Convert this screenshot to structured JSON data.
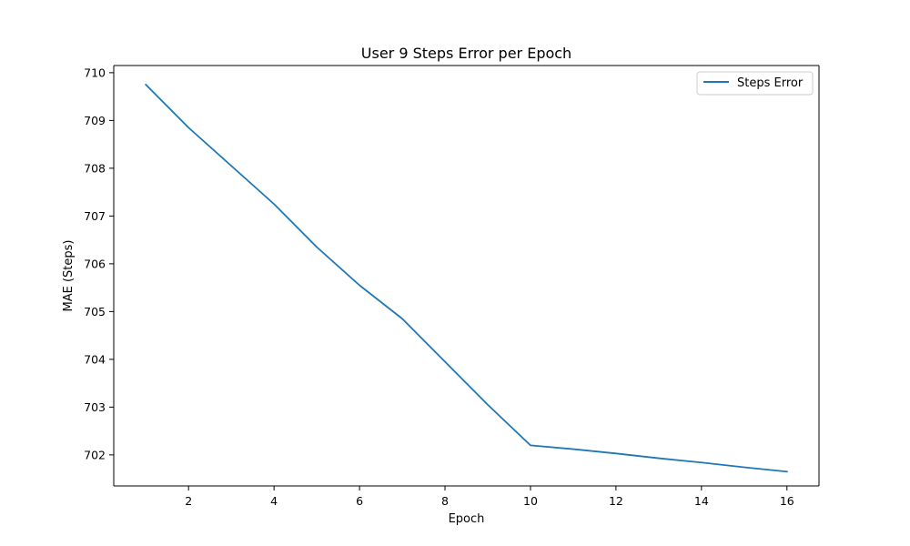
{
  "chart_data": {
    "type": "line",
    "title": "User 9 Steps Error per Epoch",
    "xlabel": "Epoch",
    "ylabel": "MAE (Steps)",
    "xlim": [
      0.25,
      16.75
    ],
    "ylim": [
      701.35,
      710.15
    ],
    "x_ticks": [
      2,
      4,
      6,
      8,
      10,
      12,
      14,
      16
    ],
    "y_ticks": [
      702,
      703,
      704,
      705,
      706,
      707,
      708,
      709,
      710
    ],
    "grid": false,
    "legend_position": "upper right",
    "series": [
      {
        "name": "Steps Error",
        "color": "#1f77b4",
        "x": [
          1,
          2,
          3,
          4,
          5,
          6,
          7,
          8,
          9,
          10,
          11,
          12,
          13,
          14,
          15,
          16
        ],
        "y": [
          709.75,
          708.85,
          708.05,
          707.25,
          706.35,
          705.55,
          704.85,
          703.95,
          703.05,
          702.2,
          702.12,
          702.03,
          701.93,
          701.84,
          701.74,
          701.65
        ]
      }
    ]
  }
}
